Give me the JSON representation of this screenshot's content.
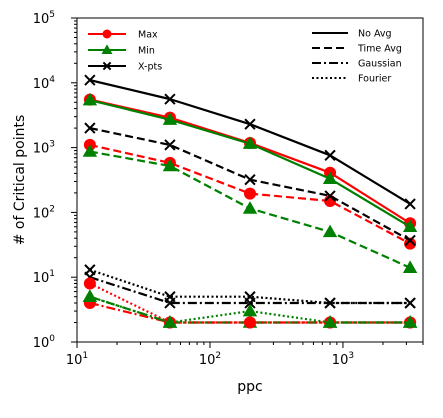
{
  "chart_data": {
    "type": "line",
    "xlabel": "ppc",
    "ylabel": "# of Critical points",
    "x_scale": "log",
    "y_scale": "log",
    "xlim": [
      10,
      4000
    ],
    "ylim": [
      1,
      100000
    ],
    "x": [
      12.5,
      50,
      200,
      800,
      3200
    ],
    "x_ticks": [
      {
        "value": 10,
        "base": "10",
        "exp": "1"
      },
      {
        "value": 100,
        "base": "10",
        "exp": "2"
      },
      {
        "value": 1000,
        "base": "10",
        "exp": "3"
      }
    ],
    "y_ticks": [
      {
        "value": 1,
        "base": "10",
        "exp": "0"
      },
      {
        "value": 10,
        "base": "10",
        "exp": "1"
      },
      {
        "value": 100,
        "base": "10",
        "exp": "2"
      },
      {
        "value": 1000,
        "base": "10",
        "exp": "3"
      },
      {
        "value": 10000,
        "base": "10",
        "exp": "4"
      },
      {
        "value": 100000,
        "base": "10",
        "exp": "5"
      }
    ],
    "grid": false,
    "legend_markers": {
      "position": "top-left",
      "entries": [
        {
          "label": "Max",
          "color": "#ff0000",
          "marker": "circle"
        },
        {
          "label": "Min",
          "color": "#008000",
          "marker": "triangle"
        },
        {
          "label": "X-pts",
          "color": "#000000",
          "marker": "x"
        }
      ]
    },
    "legend_styles": {
      "position": "top-right",
      "entries": [
        {
          "label": "No Avg",
          "dash": "solid"
        },
        {
          "label": "Time Avg",
          "dash": "dashed"
        },
        {
          "label": "Gaussian",
          "dash": "dashdot"
        },
        {
          "label": "Fourier",
          "dash": "dotted"
        }
      ]
    },
    "series": [
      {
        "type": "Max",
        "method": "No Avg",
        "color": "#ff0000",
        "marker": "circle",
        "dash": "solid",
        "values": [
          5500,
          2900,
          1180,
          410,
          68
        ]
      },
      {
        "type": "Min",
        "method": "No Avg",
        "color": "#008000",
        "marker": "triangle",
        "dash": "solid",
        "values": [
          5400,
          2700,
          1150,
          330,
          60
        ]
      },
      {
        "type": "X-pts",
        "method": "No Avg",
        "color": "#000000",
        "marker": "x",
        "dash": "solid",
        "values": [
          11000,
          5600,
          2300,
          760,
          135
        ]
      },
      {
        "type": "Max",
        "method": "Time Avg",
        "color": "#ff0000",
        "marker": "circle",
        "dash": "dashed",
        "values": [
          1100,
          580,
          195,
          150,
          33
        ]
      },
      {
        "type": "Min",
        "method": "Time Avg",
        "color": "#008000",
        "marker": "triangle",
        "dash": "dashed",
        "values": [
          870,
          520,
          115,
          50,
          14
        ]
      },
      {
        "type": "X-pts",
        "method": "Time Avg",
        "color": "#000000",
        "marker": "x",
        "dash": "dashed",
        "values": [
          2000,
          1100,
          320,
          180,
          37
        ]
      },
      {
        "type": "Max",
        "method": "Gaussian",
        "color": "#ff0000",
        "marker": "circle",
        "dash": "dashdot",
        "values": [
          4,
          2,
          2,
          2,
          2
        ]
      },
      {
        "type": "Min",
        "method": "Gaussian",
        "color": "#008000",
        "marker": "triangle",
        "dash": "dashdot",
        "values": [
          5,
          2,
          2,
          2,
          2
        ]
      },
      {
        "type": "X-pts",
        "method": "Gaussian",
        "color": "#000000",
        "marker": "x",
        "dash": "dashdot",
        "values": [
          10,
          4,
          4,
          4,
          4
        ]
      },
      {
        "type": "Max",
        "method": "Fourier",
        "color": "#ff0000",
        "marker": "circle",
        "dash": "dotted",
        "values": [
          8,
          2,
          2,
          2,
          2
        ]
      },
      {
        "type": "Min",
        "method": "Fourier",
        "color": "#008000",
        "marker": "triangle",
        "dash": "dotted",
        "values": [
          5,
          2,
          3,
          2,
          2
        ]
      },
      {
        "type": "X-pts",
        "method": "Fourier",
        "color": "#000000",
        "marker": "x",
        "dash": "dotted",
        "values": [
          13,
          5,
          5,
          4,
          4
        ]
      }
    ]
  }
}
